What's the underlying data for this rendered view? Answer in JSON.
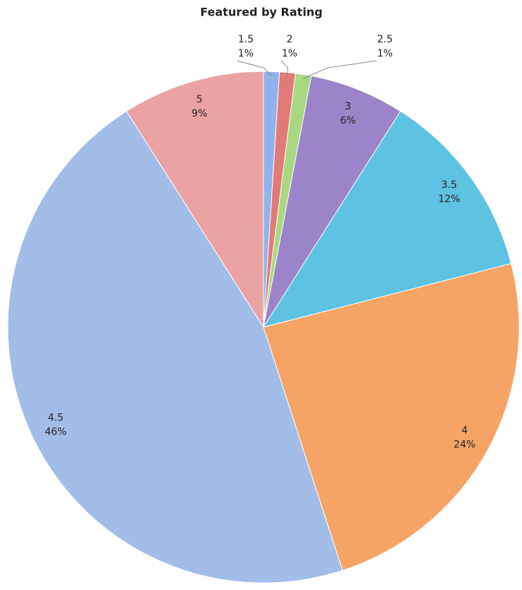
{
  "chart_data": {
    "type": "pie",
    "title": "Featured by Rating",
    "categories": [
      "1.5",
      "2",
      "2.5",
      "3",
      "3.5",
      "4",
      "4.5",
      "5"
    ],
    "values": [
      1,
      1,
      1,
      6,
      12,
      24,
      46,
      9
    ],
    "value_labels": [
      "1%",
      "1%",
      "1%",
      "6%",
      "12%",
      "24%",
      "46%",
      "9%"
    ],
    "colors": [
      "#8fb4ec",
      "#e27a78",
      "#a9d882",
      "#9b84c9",
      "#5ec2e2",
      "#f5a466",
      "#a3bde9",
      "#eaa3a2"
    ]
  }
}
